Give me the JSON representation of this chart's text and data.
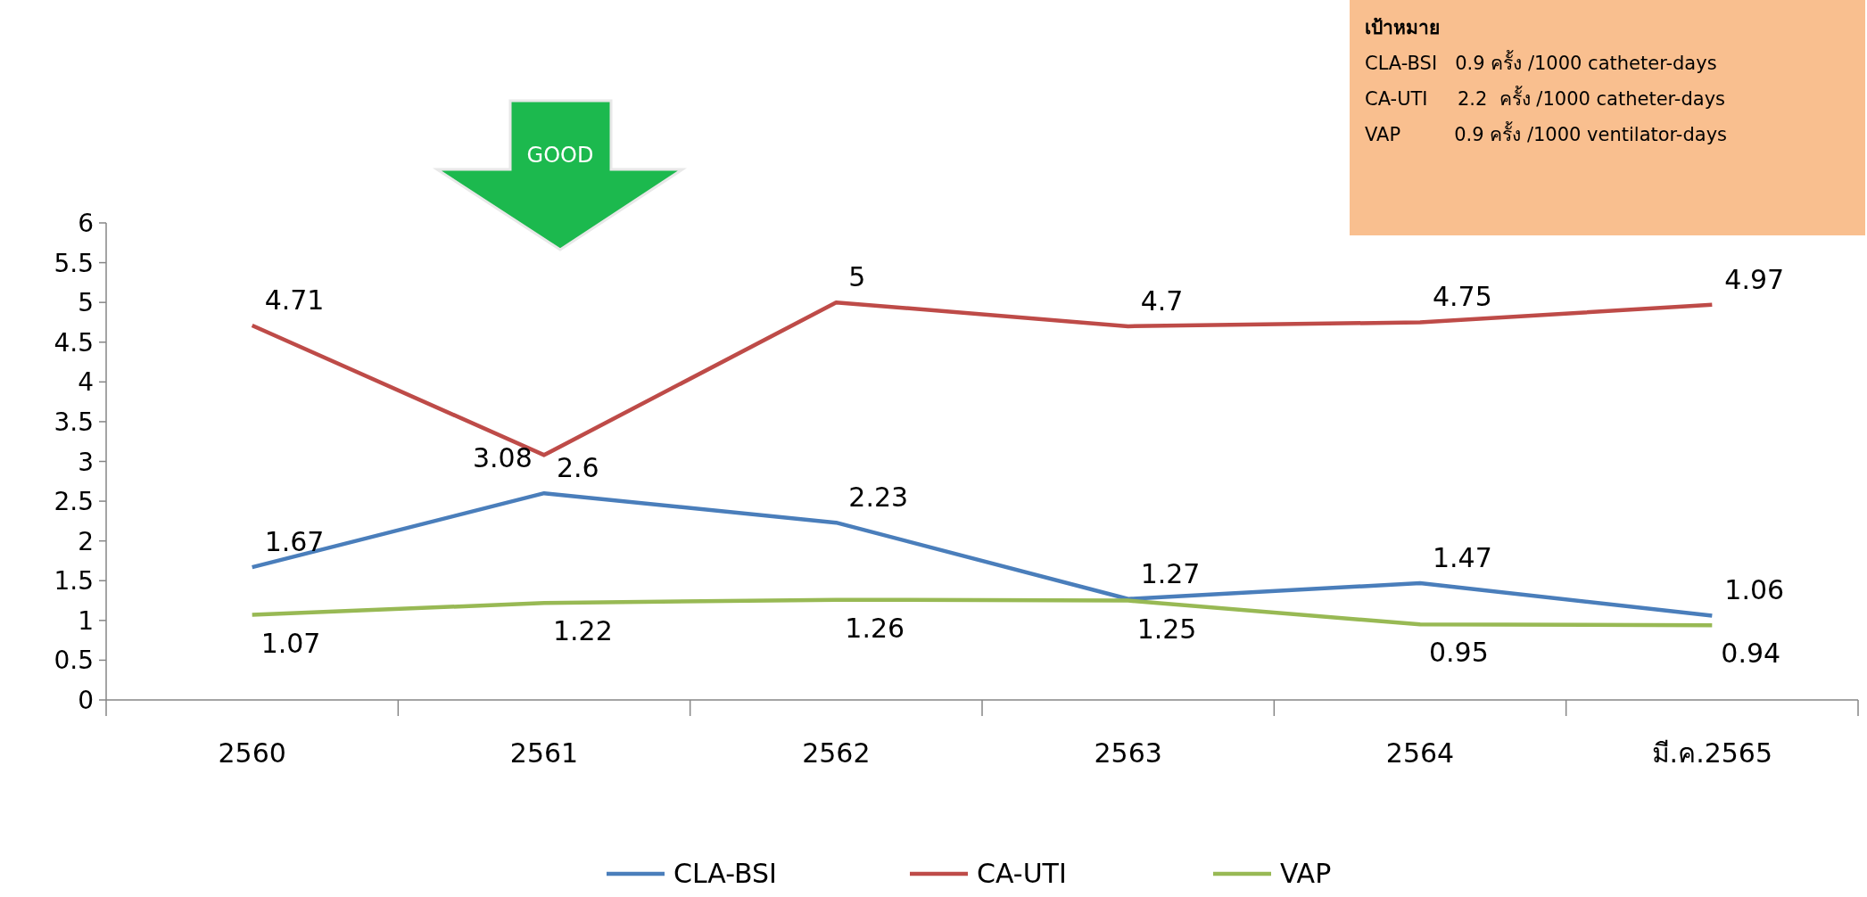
{
  "chart_data": {
    "type": "line",
    "categories": [
      "2560",
      "2561",
      "2562",
      "2563",
      "2564",
      "มี.ค.2565"
    ],
    "series": [
      {
        "name": "CLA-BSI",
        "color": "#4a7ebb",
        "values": [
          1.67,
          2.6,
          2.23,
          1.27,
          1.47,
          1.06
        ]
      },
      {
        "name": "CA-UTI",
        "color": "#be4b48",
        "values": [
          4.71,
          3.08,
          5,
          4.7,
          4.75,
          4.97
        ]
      },
      {
        "name": "VAP",
        "color": "#98b954",
        "values": [
          1.07,
          1.22,
          1.26,
          1.25,
          0.95,
          0.94
        ]
      }
    ],
    "ylim": [
      0,
      6
    ],
    "yticks": [
      0,
      0.5,
      1,
      1.5,
      2,
      2.5,
      3,
      3.5,
      4,
      4.5,
      5,
      5.5,
      6
    ],
    "data_labels": true,
    "legend": "bottom",
    "grid": false,
    "marker": "none",
    "line_style": "solid",
    "annotations": [
      "GOOD",
      "เป้าหมาย",
      "CLA-BSI   0.9 ครั้ง /1000 catheter-days",
      "CA-UTI     2.2  ครั้ง /1000 catheter-days",
      "VAP         0.9 ครั้ง /1000 ventilator-days"
    ]
  }
}
